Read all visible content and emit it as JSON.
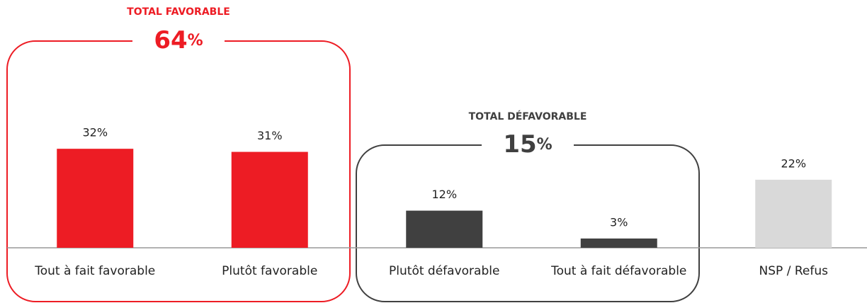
{
  "chart_data": {
    "type": "bar",
    "categories": [
      "Tout à fait favorable",
      "Plutôt favorable",
      "Plutôt défavorable",
      "Tout à fait défavorable",
      "NSP / Refus"
    ],
    "values": [
      32,
      31,
      12,
      3,
      22
    ],
    "value_labels": [
      "32%",
      "31%",
      "12%",
      "3%",
      "22%"
    ],
    "colors": [
      "#ed1c24",
      "#ed1c24",
      "#404040",
      "#404040",
      "#d9d9d9"
    ],
    "groups": [
      {
        "title": "TOTAL FAVORABLE",
        "value": 64,
        "label": "64%",
        "color": "#ed1c24",
        "members": [
          0,
          1
        ]
      },
      {
        "title": "TOTAL DÉFAVORABLE",
        "value": 15,
        "label": "15%",
        "color": "#404040",
        "members": [
          2,
          3
        ]
      }
    ]
  }
}
